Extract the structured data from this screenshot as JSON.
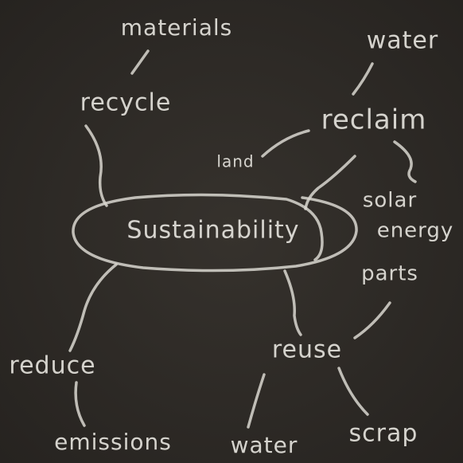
{
  "center": "Sustainability",
  "nodes": {
    "recycle": "recycle",
    "materials": "materials",
    "reclaim": "reclaim",
    "water_top": "water",
    "land": "land",
    "solar": "solar",
    "energy": "energy",
    "parts": "parts",
    "reduce": "reduce",
    "emissions": "emissions",
    "reuse": "reuse",
    "water_bottom": "water",
    "scrap": "scrap"
  }
}
